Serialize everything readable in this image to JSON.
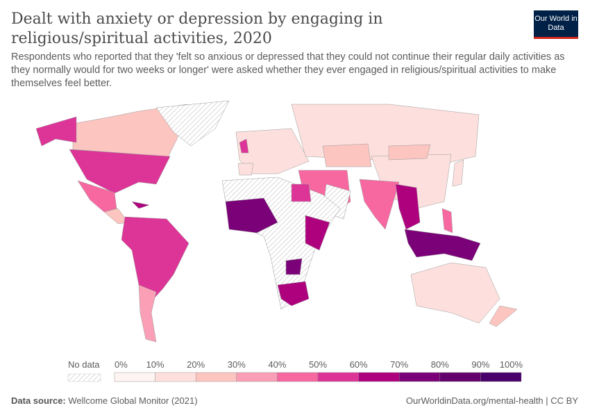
{
  "header": {
    "title": "Dealt with anxiety or depression by engaging in religious/spiritual activities, 2020",
    "subtitle": "Respondents who reported that they 'felt so anxious or depressed that they could not continue their regular daily activities as they normally would for two weeks or longer' were asked whether they ever engaged in religious/spiritual activities to make themselves feel better.",
    "logo": "Our World in Data"
  },
  "chart_data": {
    "type": "map",
    "title": "Dealt with anxiety or depression by engaging in religious/spiritual activities, 2020",
    "year": 2020,
    "legend": {
      "no_data_label": "No data",
      "tick_labels": [
        "0%",
        "10%",
        "20%",
        "30%",
        "40%",
        "50%",
        "60%",
        "70%",
        "80%",
        "90%",
        "100%"
      ],
      "bins": [
        0,
        10,
        20,
        30,
        40,
        50,
        60,
        70,
        80,
        90,
        100
      ],
      "colors": [
        "#fef4f1",
        "#fde0dd",
        "#fcc5c0",
        "#fa9fb5",
        "#f768a1",
        "#dd3497",
        "#ae017e",
        "#7a0177",
        "#63006e",
        "#49006a"
      ]
    }
  },
  "footer": {
    "source_label": "Data source:",
    "source": "Wellcome Global Monitor (2021)",
    "url": "OurWorldinData.org/mental-health | CC BY"
  }
}
